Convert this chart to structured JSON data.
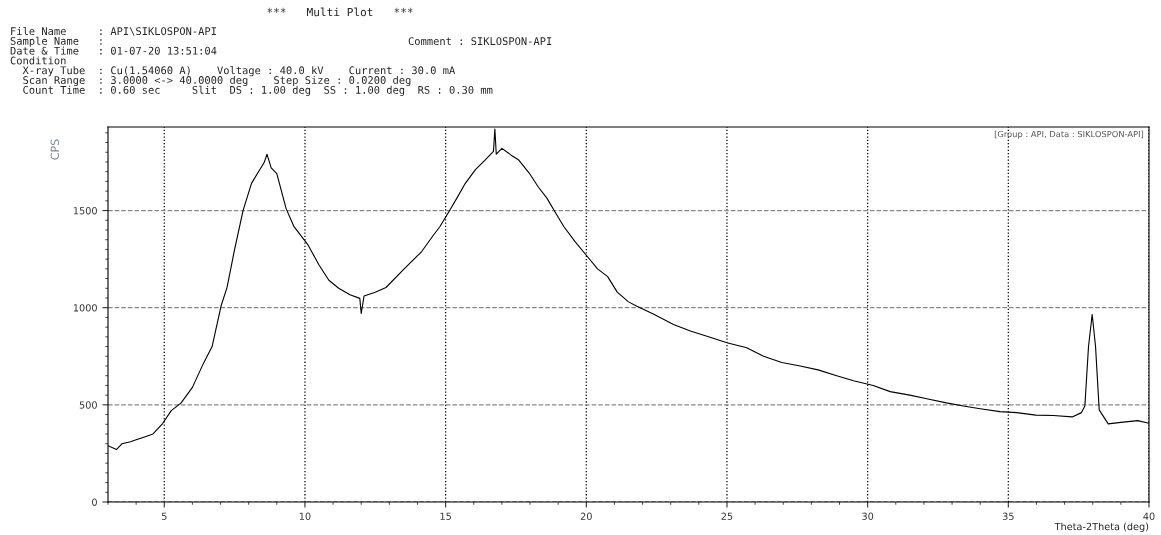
{
  "chart_data": {
    "type": "line",
    "title": "***   Multi Plot   ***",
    "xlabel": "Theta-2Theta (deg)",
    "ylabel": "CPS",
    "annotations": [
      "File Name     : API\\SIKLOSPON-API",
      "Sample Name   :",
      "Date & Time   : 01-07-20 13:51:04",
      "Condition",
      "  X-ray Tube  : Cu(1.54060 A)    Voltage : 40.0 kV    Current : 30.0 mA",
      "  Scan Range  : 3.0000 <-> 40.0000 deg    Step Size : 0.0200 deg",
      "  Count Time  : 0.60 sec     Slit  DS : 1.00 deg  SS : 1.00 deg  RS : 0.30 mm",
      "Comment : SIKLOSPON-API",
      "[Group : API, Data : SIKLOSPON-API]"
    ],
    "x": [
      3,
      3.3,
      3.5,
      3.8,
      4.0,
      4.3,
      4.6,
      4.94,
      5.25,
      5.6,
      6.0,
      6.4,
      6.7,
      7.02,
      7.23,
      7.5,
      7.8,
      8.1,
      8.35,
      8.55,
      8.65,
      8.8,
      9.0,
      9.33,
      9.6,
      10.1,
      10.5,
      10.85,
      11.2,
      11.6,
      11.95,
      12.0,
      12.1,
      12.5,
      12.88,
      13.5,
      14.15,
      14.5,
      14.8,
      15.1,
      15.4,
      15.7,
      16.06,
      16.4,
      16.7,
      16.75,
      16.8,
      17.0,
      17.33,
      17.6,
      17.97,
      18.3,
      18.6,
      18.9,
      19.2,
      19.6,
      20.0,
      20.4,
      20.76,
      21.1,
      21.5,
      21.8,
      22.4,
      23.1,
      23.7,
      24.4,
      25.0,
      25.7,
      26.3,
      26.95,
      27.6,
      28.24,
      28.9,
      29.5,
      30.2,
      30.8,
      31.5,
      32.1,
      32.8,
      33.4,
      34.0,
      34.7,
      35.3,
      35.98,
      36.6,
      37.27,
      37.6,
      37.72,
      37.85,
      37.98,
      38.1,
      38.23,
      38.55,
      39.0,
      39.6,
      40
    ],
    "series": [
      {
        "color": "#000000",
        "values": [
          290,
          270,
          300,
          310,
          320,
          335,
          350,
          404,
          470,
          510,
          590,
          716,
          800,
          1010,
          1103,
          1300,
          1500,
          1640,
          1700,
          1747,
          1790,
          1720,
          1690,
          1510,
          1420,
          1325,
          1220,
          1141,
          1100,
          1067,
          1048,
          970,
          1060,
          1080,
          1104,
          1196,
          1289,
          1360,
          1418,
          1490,
          1564,
          1640,
          1711,
          1760,
          1804,
          1920,
          1790,
          1820,
          1785,
          1760,
          1693,
          1620,
          1564,
          1490,
          1418,
          1340,
          1270,
          1200,
          1160,
          1080,
          1030,
          1007,
          966,
          914,
          880,
          848,
          820,
          794,
          750,
          718,
          700,
          680,
          650,
          624,
          600,
          568,
          550,
          531,
          510,
          494,
          480,
          465,
          460,
          447,
          445,
          438,
          460,
          494,
          800,
          965,
          800,
          474,
          402,
          410,
          419,
          405
        ]
      }
    ],
    "xlim": [
      3,
      40
    ],
    "ylim": [
      0,
      1930
    ],
    "xticks": [
      5,
      10,
      15,
      20,
      25,
      30,
      35,
      40
    ],
    "yticks": [
      0,
      500,
      1000,
      1500
    ],
    "grid": true,
    "marker": "none",
    "line_style": "solid",
    "legend": false
  }
}
